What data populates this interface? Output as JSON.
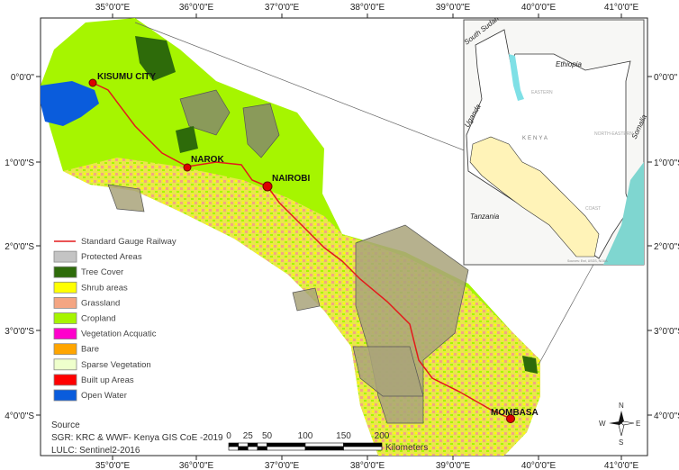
{
  "axes": {
    "longitudes": [
      "35°0'0\"E",
      "36°0'0\"E",
      "37°0'0\"E",
      "38°0'0\"E",
      "39°0'0\"E",
      "40°0'0\"E",
      "41°0'0\"E"
    ],
    "latitudes": [
      "0°0'0\"",
      "1°0'0\"S",
      "2°0'0\"S",
      "3°0'0\"S",
      "4°0'0\"S"
    ]
  },
  "cities": [
    {
      "name": "KISUMU CITY"
    },
    {
      "name": "NAROK"
    },
    {
      "name": "NAIROBI"
    },
    {
      "name": "MOMBASA"
    }
  ],
  "legend": [
    {
      "label": "Standard Gauge Railway",
      "color": "#e31a1c",
      "type": "line"
    },
    {
      "label": "Protected Areas",
      "color": "#c4c4c4"
    },
    {
      "label": "Tree Cover",
      "color": "#2e6b0a"
    },
    {
      "label": "Shrub areas",
      "color": "#ffff00"
    },
    {
      "label": "Grassland",
      "color": "#f4a582"
    },
    {
      "label": "Cropland",
      "color": "#a6f500"
    },
    {
      "label": "Vegetation Acquatic",
      "color": "#ff00cc"
    },
    {
      "label": "Bare",
      "color": "#ffa500"
    },
    {
      "label": "Sparse Vegetation",
      "color": "#eeffcc"
    },
    {
      "label": "Built up Areas",
      "color": "#ff0000"
    },
    {
      "label": "Open Water",
      "color": "#0a5cdc"
    }
  ],
  "source": {
    "heading": "Source",
    "line1": "SGR: KRC & WWF- Kenya GIS CoE -2019",
    "line2": "LULC: Sentinel2-2016"
  },
  "scale_bar": {
    "ticks": [
      "0",
      "25",
      "50",
      "100",
      "150",
      "200"
    ],
    "unit": "Kilometers"
  },
  "north_arrow": {
    "n": "N",
    "s": "S",
    "e": "E",
    "w": "W"
  },
  "inset": {
    "countries": [
      "South Sudan",
      "Ethiopia",
      "Uganda",
      "Somalia",
      "Tanzania"
    ],
    "regions": [
      "KENYA",
      "EASTERN",
      "NORTH-EASTERN",
      "COAST"
    ],
    "credit": "Sources: Esri, USGS, NOAA"
  }
}
